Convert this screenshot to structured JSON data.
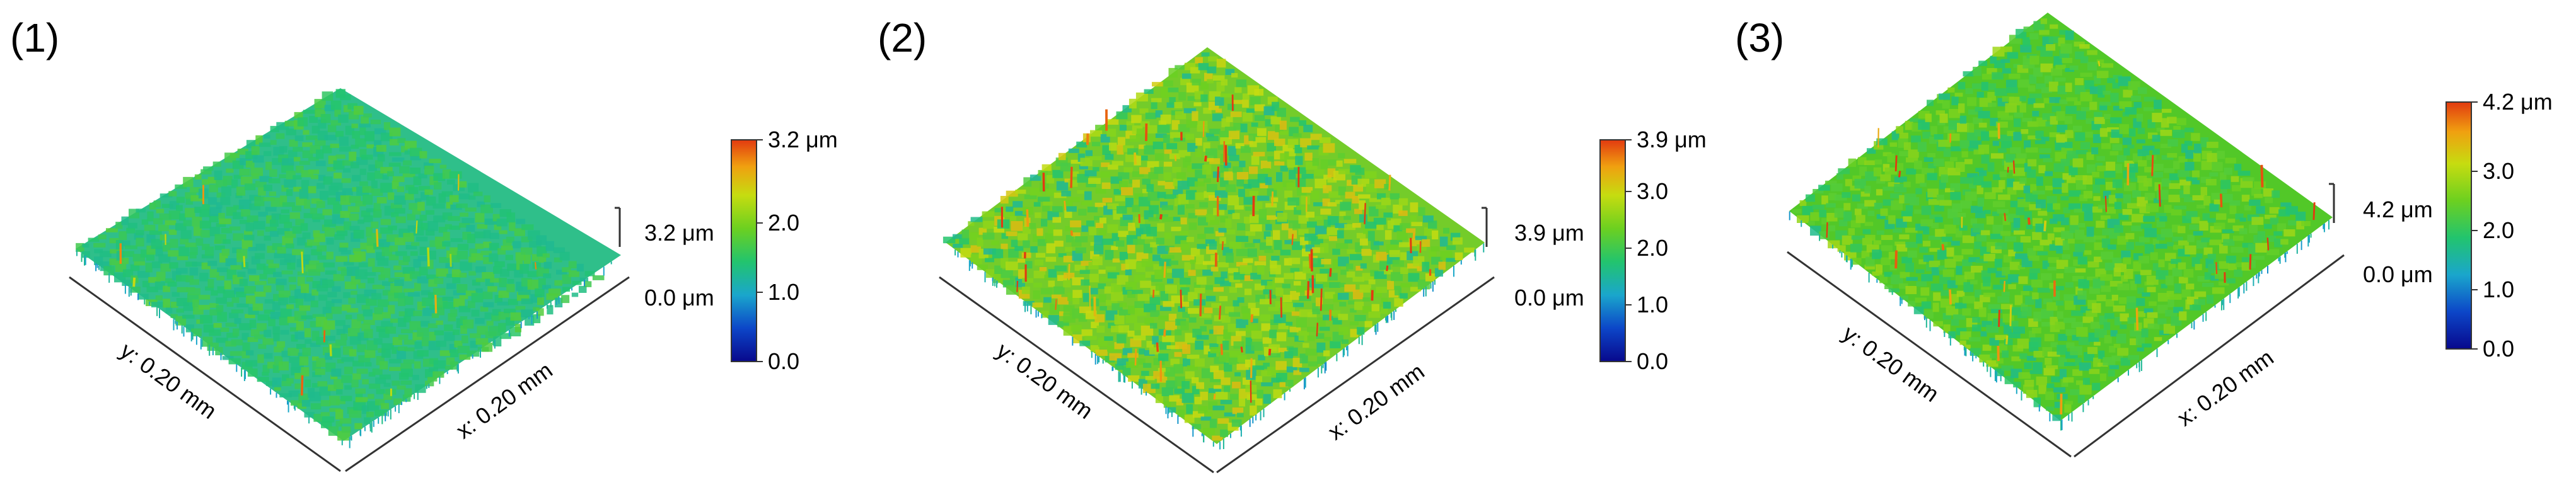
{
  "figure": {
    "panels": [
      {
        "label": "(1)",
        "colorbar_max": "3.2 μm",
        "z_top": "3.2 μm",
        "z_bottom": "0.0 μm",
        "y_axis": "y: 0.20 mm",
        "x_axis": "x: 0.20 mm"
      },
      {
        "label": "(2)",
        "colorbar_max": "3.9 μm",
        "z_top": "3.9 μm",
        "z_bottom": "0.0 μm",
        "y_axis": "y: 0.20 mm",
        "x_axis": "x: 0.20 mm"
      },
      {
        "label": "(3)",
        "colorbar_max": "4.2 μm",
        "z_top": "4.2 μm",
        "z_bottom": "0.0 μm",
        "y_axis": "y: 0.20 mm",
        "x_axis": "x: 0.20 mm"
      }
    ]
  },
  "chart_data": [
    {
      "type": "heatmap",
      "subtype": "3d-surface-topography",
      "panel": "(1)",
      "x_extent": "0.20 mm",
      "y_extent": "0.20 mm",
      "z_range": [
        0.0,
        3.2
      ],
      "z_unit": "μm",
      "colorbar_ticks": [
        "0.0",
        "1.0",
        "2.0",
        "3.2 μm"
      ],
      "colormap": [
        "#08088c",
        "#0c46c8",
        "#1aa6cc",
        "#22c46e",
        "#6cd020",
        "#c6dc10",
        "#f0a010",
        "#e23a10"
      ],
      "surface_level": 0.45,
      "roughness": 0.08,
      "peaks": 0.015
    },
    {
      "type": "heatmap",
      "subtype": "3d-surface-topography",
      "panel": "(2)",
      "x_extent": "0.20 mm",
      "y_extent": "0.20 mm",
      "z_range": [
        0.0,
        3.9
      ],
      "z_unit": "μm",
      "colorbar_ticks": [
        "0.0",
        "1.0",
        "2.0",
        "3.0",
        "3.9 μm"
      ],
      "colormap": [
        "#08088c",
        "#0c46c8",
        "#1aa6cc",
        "#22c46e",
        "#6cd020",
        "#c6dc10",
        "#f0a010",
        "#e23a10"
      ],
      "surface_level": 0.58,
      "roughness": 0.22,
      "peaks": 0.06
    },
    {
      "type": "heatmap",
      "subtype": "3d-surface-topography",
      "panel": "(3)",
      "x_extent": "0.20 mm",
      "y_extent": "0.20 mm",
      "z_range": [
        0.0,
        4.2
      ],
      "z_unit": "μm",
      "colorbar_ticks": [
        "0.0",
        "1.0",
        "2.0",
        "3.0",
        "4.2 μm"
      ],
      "colormap": [
        "#08088c",
        "#0c46c8",
        "#1aa6cc",
        "#22c46e",
        "#6cd020",
        "#c6dc10",
        "#f0a010",
        "#e23a10"
      ],
      "surface_level": 0.52,
      "roughness": 0.14,
      "peaks": 0.03
    }
  ]
}
